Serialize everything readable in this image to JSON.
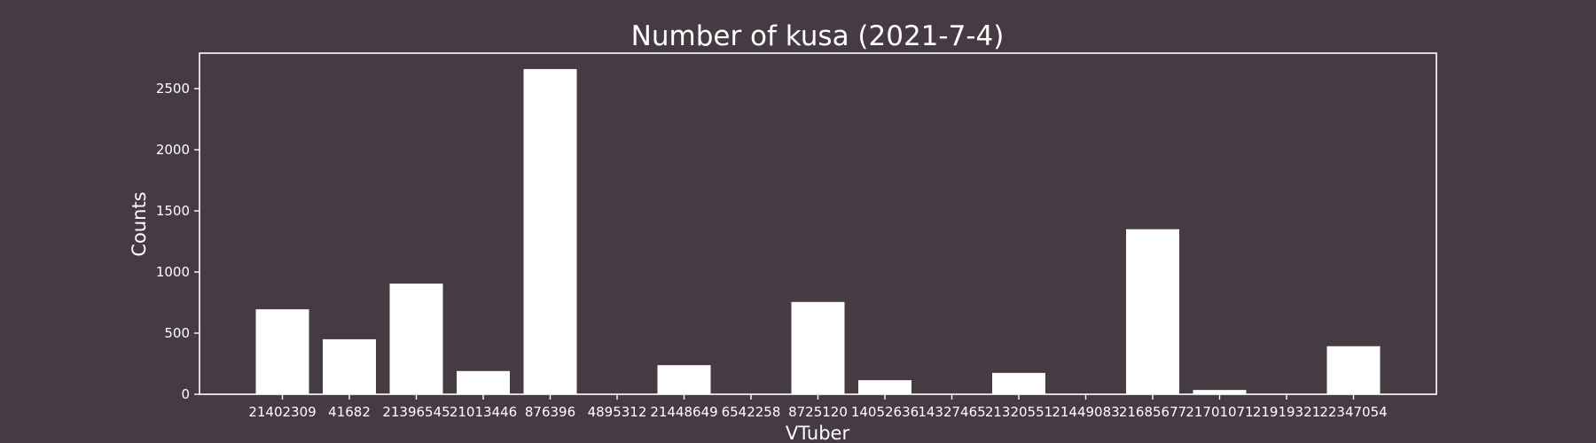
{
  "chart_data": {
    "type": "bar",
    "title": "Number of kusa (2021-7-4)",
    "xlabel": "VTuber",
    "ylabel": "Counts",
    "categories": [
      "21402309",
      "41682",
      "21396545",
      "21013446",
      "876396",
      "4895312",
      "21448649",
      "6542258",
      "8725120",
      "14052636",
      "14327465",
      "21320551",
      "21449083",
      "21685677",
      "21701071",
      "21919321",
      "22347054"
    ],
    "values": [
      695,
      450,
      905,
      190,
      2660,
      0,
      238,
      0,
      755,
      115,
      0,
      175,
      0,
      1350,
      35,
      0,
      393
    ],
    "ylim": [
      0,
      2790
    ],
    "yticks": [
      0,
      500,
      1000,
      1500,
      2000,
      2500
    ],
    "grid": false,
    "colors": {
      "background": "#463a43",
      "bar": "#ffffff",
      "text": "#ffffff"
    }
  }
}
